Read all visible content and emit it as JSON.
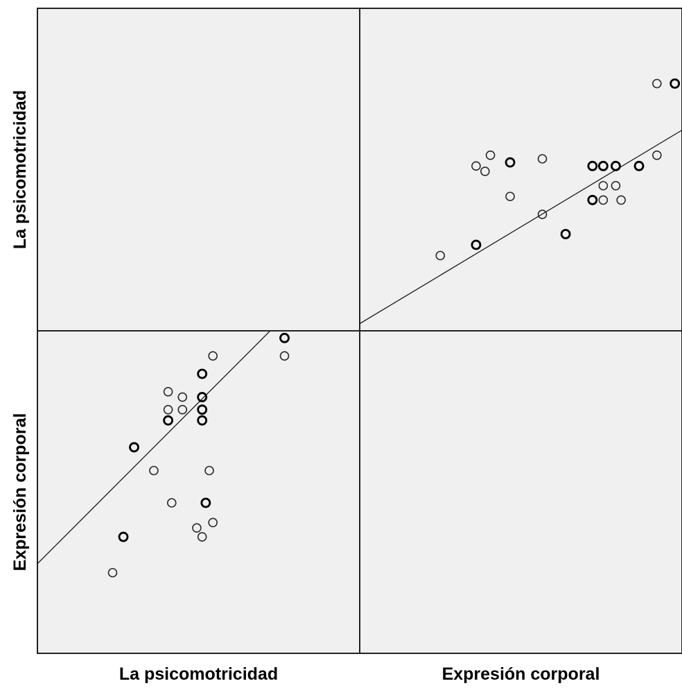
{
  "chart_data": {
    "type": "scatter",
    "subtype": "scatterplot-matrix",
    "variables": [
      "La psicomotricidad",
      "Expresión corporal"
    ],
    "fit_line": true,
    "grid": false,
    "background": "#f0f0f0",
    "marker": "open-circle",
    "xlim": [
      2,
      20
    ],
    "ylim": [
      2,
      20
    ],
    "panels": [
      {
        "row": 0,
        "col": 1,
        "x_variable": "Expresión corporal",
        "y_variable": "La psicomotricidad",
        "points": [
          {
            "x": 6.5,
            "y": 6.2,
            "bold": false
          },
          {
            "x": 8.5,
            "y": 6.8,
            "bold": true
          },
          {
            "x": 8.5,
            "y": 11.2,
            "bold": false
          },
          {
            "x": 9.0,
            "y": 10.9,
            "bold": false
          },
          {
            "x": 9.3,
            "y": 11.8,
            "bold": false
          },
          {
            "x": 10.4,
            "y": 9.5,
            "bold": false
          },
          {
            "x": 10.4,
            "y": 11.4,
            "bold": true
          },
          {
            "x": 12.2,
            "y": 8.5,
            "bold": false
          },
          {
            "x": 12.2,
            "y": 11.6,
            "bold": false
          },
          {
            "x": 13.5,
            "y": 7.4,
            "bold": true
          },
          {
            "x": 15.0,
            "y": 9.3,
            "bold": true
          },
          {
            "x": 15.0,
            "y": 11.2,
            "bold": true
          },
          {
            "x": 15.6,
            "y": 9.3,
            "bold": false
          },
          {
            "x": 15.6,
            "y": 10.1,
            "bold": false
          },
          {
            "x": 15.6,
            "y": 11.2,
            "bold": true
          },
          {
            "x": 16.3,
            "y": 10.1,
            "bold": false
          },
          {
            "x": 16.3,
            "y": 11.2,
            "bold": true
          },
          {
            "x": 16.6,
            "y": 9.3,
            "bold": false
          },
          {
            "x": 17.6,
            "y": 11.2,
            "bold": true
          },
          {
            "x": 18.6,
            "y": 11.8,
            "bold": false
          },
          {
            "x": 18.6,
            "y": 15.8,
            "bold": false
          },
          {
            "x": 19.6,
            "y": 15.8,
            "bold": true
          }
        ],
        "fit": {
          "intercept": 1.2,
          "slope": 0.6
        }
      },
      {
        "row": 1,
        "col": 0,
        "x_variable": "La psicomotricidad",
        "y_variable": "Expresión corporal",
        "points": [
          {
            "x": 6.2,
            "y": 6.5,
            "bold": false
          },
          {
            "x": 6.8,
            "y": 8.5,
            "bold": true
          },
          {
            "x": 11.2,
            "y": 8.5,
            "bold": false
          },
          {
            "x": 10.9,
            "y": 9.0,
            "bold": false
          },
          {
            "x": 11.8,
            "y": 9.3,
            "bold": false
          },
          {
            "x": 9.5,
            "y": 10.4,
            "bold": false
          },
          {
            "x": 11.4,
            "y": 10.4,
            "bold": true
          },
          {
            "x": 8.5,
            "y": 12.2,
            "bold": false
          },
          {
            "x": 11.6,
            "y": 12.2,
            "bold": false
          },
          {
            "x": 7.4,
            "y": 13.5,
            "bold": true
          },
          {
            "x": 9.3,
            "y": 15.0,
            "bold": true
          },
          {
            "x": 11.2,
            "y": 15.0,
            "bold": true
          },
          {
            "x": 9.3,
            "y": 15.6,
            "bold": false
          },
          {
            "x": 10.1,
            "y": 15.6,
            "bold": false
          },
          {
            "x": 11.2,
            "y": 15.6,
            "bold": true
          },
          {
            "x": 10.1,
            "y": 16.3,
            "bold": false
          },
          {
            "x": 11.2,
            "y": 16.3,
            "bold": true
          },
          {
            "x": 9.3,
            "y": 16.6,
            "bold": false
          },
          {
            "x": 11.2,
            "y": 17.6,
            "bold": true
          },
          {
            "x": 11.8,
            "y": 18.6,
            "bold": false
          },
          {
            "x": 15.8,
            "y": 18.6,
            "bold": false
          },
          {
            "x": 15.8,
            "y": 19.6,
            "bold": true
          }
        ],
        "fit": {
          "intercept": 5.0,
          "slope": 1.0
        }
      }
    ]
  }
}
